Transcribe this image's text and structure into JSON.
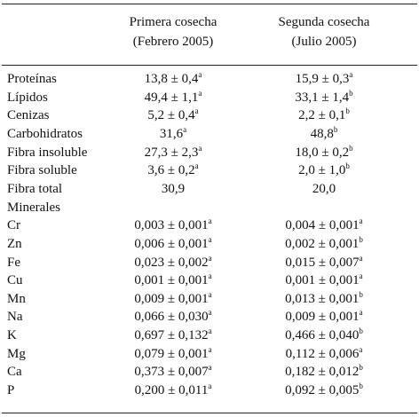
{
  "table": {
    "header": [
      {
        "line1": "Primera cosecha",
        "line2": "(Febrero 2005)"
      },
      {
        "line1": "Segunda cosecha",
        "line2": "(Julio 2005)"
      }
    ],
    "rows": [
      {
        "label": "Proteínas",
        "cells": [
          {
            "text": "13,8 ± 0,4",
            "sup": "a"
          },
          {
            "text": "15,9 ± 0,3",
            "sup": "a"
          }
        ]
      },
      {
        "label": "Lípidos",
        "cells": [
          {
            "text": "49,4 ± 1,1",
            "sup": "a"
          },
          {
            "text": "33,1 ± 1,4",
            "sup": "b"
          }
        ]
      },
      {
        "label": "Cenizas",
        "cells": [
          {
            "text": "5,2 ± 0,4",
            "sup": "a"
          },
          {
            "text": "2,2 ± 0,1",
            "sup": "b"
          }
        ]
      },
      {
        "label": "Carbohidratos",
        "cells": [
          {
            "text": "31,6",
            "sup": "a"
          },
          {
            "text": "48,8",
            "sup": "b"
          }
        ]
      },
      {
        "label": "Fibra insoluble",
        "cells": [
          {
            "text": "27,3 ± 2,3",
            "sup": "a"
          },
          {
            "text": "18,0 ± 0,2",
            "sup": "b"
          }
        ]
      },
      {
        "label": "Fibra soluble",
        "cells": [
          {
            "text": "3,6 ± 0,2",
            "sup": "a"
          },
          {
            "text": "2,0 ± 1,0",
            "sup": "b"
          }
        ]
      },
      {
        "label": "Fibra total",
        "cells": [
          {
            "text": "30,9"
          },
          {
            "text": "20,0"
          }
        ]
      },
      {
        "label": "Minerales",
        "cells": []
      },
      {
        "label": "Cr",
        "cells": [
          {
            "text": "0,003 ± 0,001",
            "sup": "a"
          },
          {
            "text": "0,004 ± 0,001",
            "sup": "a"
          }
        ]
      },
      {
        "label": "Zn",
        "cells": [
          {
            "text": "0,006 ± 0,001",
            "sup": "a"
          },
          {
            "text": "0,002 ± 0,001",
            "sup": "b"
          }
        ]
      },
      {
        "label": "Fe",
        "cells": [
          {
            "text": "0,023 ± 0,002",
            "sup": "a"
          },
          {
            "text": "0,015 ± 0,007",
            "sup": "a"
          }
        ]
      },
      {
        "label": "Cu",
        "cells": [
          {
            "text": "0,001 ± 0,001",
            "sup": "a"
          },
          {
            "text": "0,001 ± 0,001",
            "sup": "a"
          }
        ]
      },
      {
        "label": "Mn",
        "cells": [
          {
            "text": "0,009 ± 0,001",
            "sup": "a"
          },
          {
            "text": "0,013 ± 0,001",
            "sup": "b"
          }
        ]
      },
      {
        "label": "Na",
        "cells": [
          {
            "text": "0,066 ± 0,030",
            "sup": "a"
          },
          {
            "text": "0,009 ± 0,001",
            "sup": "a"
          }
        ]
      },
      {
        "label": "K",
        "cells": [
          {
            "text": "0,697 ± 0,132",
            "sup": "a"
          },
          {
            "text": "0,466 ± 0,040",
            "sup": "b"
          }
        ]
      },
      {
        "label": "Mg",
        "cells": [
          {
            "text": "0,079 ± 0,001",
            "sup": "a"
          },
          {
            "text": "0,112 ± 0,006",
            "sup": "a"
          }
        ]
      },
      {
        "label": "Ca",
        "cells": [
          {
            "text": "0,373 ± 0,007",
            "sup": "a"
          },
          {
            "text": "0,182 ± 0,012",
            "sup": "b"
          }
        ]
      },
      {
        "label": "P",
        "cells": [
          {
            "text": "0,200 ± 0,011",
            "sup": "a"
          },
          {
            "text": "0,092 ± 0,005",
            "sup": "b"
          }
        ]
      }
    ]
  }
}
